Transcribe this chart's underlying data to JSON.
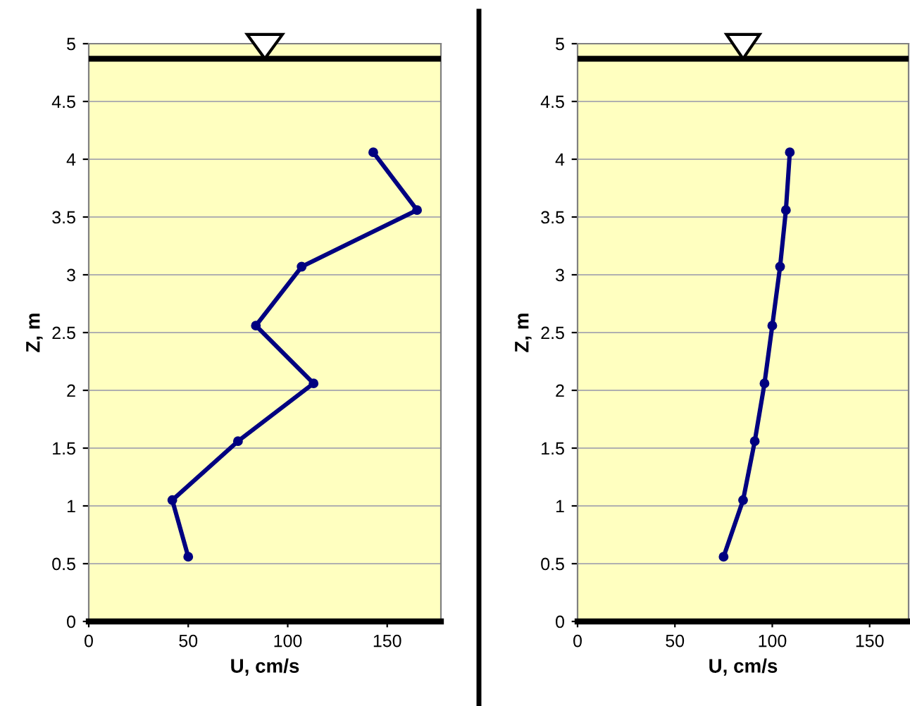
{
  "chart_data": [
    {
      "type": "line",
      "xlabel": "U, cm/s",
      "ylabel": "Z, m",
      "x": [
        143,
        165,
        107,
        84,
        113,
        75,
        42,
        50
      ],
      "series": [
        {
          "color": "#000080",
          "values": [
            4.06,
            3.56,
            3.07,
            2.56,
            2.06,
            1.56,
            1.05,
            0.56
          ]
        }
      ],
      "xlim": [
        0,
        177
      ],
      "xticks": [
        0,
        50,
        100,
        150
      ],
      "ylim": [
        0,
        5
      ],
      "yticks": [
        0,
        0.5,
        1,
        1.5,
        2,
        2.5,
        3,
        3.5,
        4,
        4.5,
        5
      ],
      "grid": "y",
      "marker": "circle",
      "line_style": "solid",
      "ref_lines": [
        {
          "axis": "y",
          "value": 4.87,
          "color": "#000000"
        }
      ]
    },
    {
      "type": "line",
      "xlabel": "U, cm/s",
      "ylabel": "Z, m",
      "x": [
        109,
        107,
        104,
        100,
        96,
        91,
        85,
        75
      ],
      "series": [
        {
          "color": "#000080",
          "values": [
            4.06,
            3.56,
            3.07,
            2.56,
            2.06,
            1.56,
            1.05,
            0.56
          ]
        }
      ],
      "xlim": [
        0,
        170
      ],
      "xticks": [
        0,
        50,
        100,
        150
      ],
      "ylim": [
        0,
        5
      ],
      "yticks": [
        0,
        0.5,
        1,
        1.5,
        2,
        2.5,
        3,
        3.5,
        4,
        4.5,
        5
      ],
      "grid": "y",
      "marker": "circle",
      "line_style": "solid",
      "ref_lines": [
        {
          "axis": "y",
          "value": 4.87,
          "color": "#000000"
        }
      ]
    }
  ]
}
